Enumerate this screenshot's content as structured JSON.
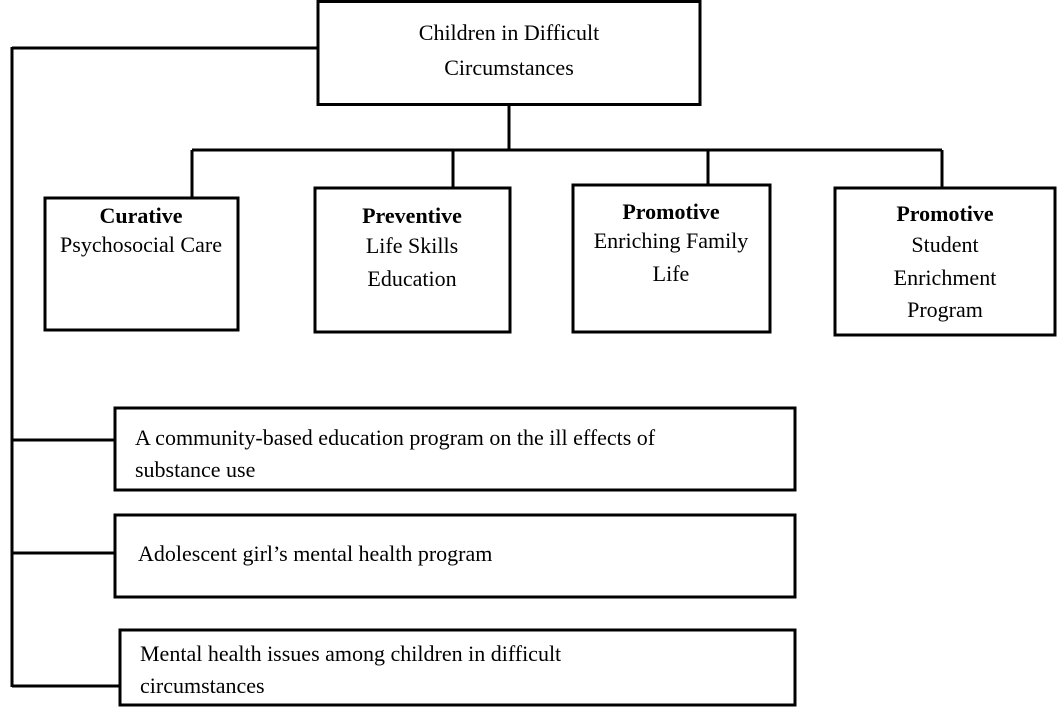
{
  "root": {
    "lines": [
      "Children in Difficult",
      "Circumstances"
    ]
  },
  "nodes": [
    {
      "title": "Curative",
      "lines": [
        "Psychosocial Care"
      ]
    },
    {
      "title": "Preventive",
      "lines": [
        "Life Skills",
        "Education"
      ]
    },
    {
      "title": "Promotive",
      "lines": [
        "Enriching Family",
        "Life"
      ]
    },
    {
      "title": "Promotive",
      "lines": [
        "Student",
        "Enrichment",
        "Program"
      ]
    }
  ],
  "notes": [
    {
      "lines": [
        "A community-based education program on the ill effects of",
        "substance use"
      ]
    },
    {
      "lines": [
        "Adolescent girl’s mental health program"
      ]
    },
    {
      "lines": [
        "Mental health issues among children in difficult",
        "circumstances"
      ]
    }
  ]
}
